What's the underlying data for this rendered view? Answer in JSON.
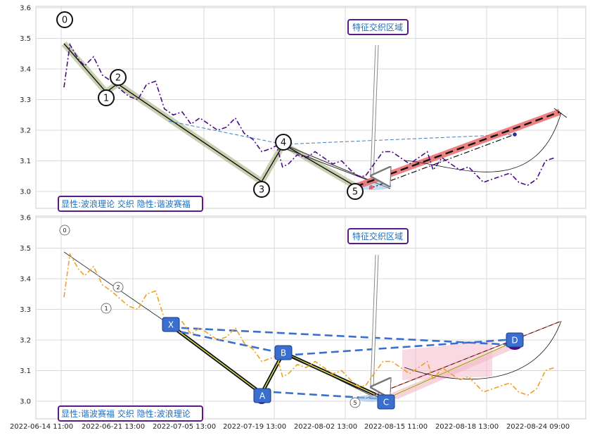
{
  "chart_data": [
    {
      "type": "line",
      "panel": "top",
      "ylim": [
        2.95,
        3.6
      ],
      "yticks": [
        3.0,
        3.1,
        3.2,
        3.3,
        3.4,
        3.5,
        3.6
      ],
      "legend_text": "显性:波浪理论 交织 隐性:谐波赛福",
      "annotation_text": "特征交织区域",
      "series": [
        {
          "values": [
            [
              0,
              3.34
            ],
            [
              0.4,
              3.48
            ],
            [
              1.0,
              3.43
            ],
            [
              1.4,
              3.41
            ],
            [
              2.0,
              3.44
            ],
            [
              2.6,
              3.38
            ],
            [
              3.2,
              3.36
            ],
            [
              3.9,
              3.33
            ],
            [
              4.4,
              3.31
            ],
            [
              5.0,
              3.3
            ],
            [
              5.6,
              3.35
            ],
            [
              6.2,
              3.36
            ],
            [
              6.8,
              3.27
            ],
            [
              7.4,
              3.25
            ],
            [
              8.0,
              3.26
            ],
            [
              8.6,
              3.22
            ],
            [
              9.2,
              3.24
            ],
            [
              9.8,
              3.22
            ],
            [
              10.4,
              3.2
            ],
            [
              11.0,
              3.21
            ],
            [
              11.6,
              3.24
            ],
            [
              12.2,
              3.19
            ],
            [
              12.8,
              3.17
            ],
            [
              13.4,
              3.13
            ],
            [
              14.0,
              3.14
            ],
            [
              14.4,
              3.15
            ],
            [
              14.8,
              3.08
            ],
            [
              15.2,
              3.09
            ],
            [
              15.8,
              3.12
            ],
            [
              16.4,
              3.11
            ],
            [
              17.0,
              3.13
            ],
            [
              17.6,
              3.11
            ],
            [
              18.2,
              3.09
            ],
            [
              18.8,
              3.1
            ],
            [
              19.4,
              3.07
            ],
            [
              19.9,
              3.05
            ],
            [
              20.4,
              3.05
            ],
            [
              21.0,
              3.09
            ],
            [
              21.6,
              3.13
            ],
            [
              22.2,
              3.13
            ],
            [
              22.8,
              3.11
            ],
            [
              23.4,
              3.09
            ],
            [
              24.0,
              3.11
            ],
            [
              24.6,
              3.13
            ],
            [
              25.0,
              3.07
            ],
            [
              25.6,
              3.11
            ],
            [
              26.2,
              3.09
            ],
            [
              26.8,
              3.07
            ],
            [
              27.4,
              3.08
            ],
            [
              28.0,
              3.05
            ],
            [
              28.4,
              3.03
            ],
            [
              29.0,
              3.04
            ],
            [
              29.6,
              3.05
            ],
            [
              30.2,
              3.06
            ],
            [
              30.8,
              3.03
            ],
            [
              31.4,
              3.02
            ],
            [
              32.0,
              3.04
            ],
            [
              32.6,
              3.1
            ],
            [
              33.2,
              3.11
            ]
          ]
        }
      ],
      "wave_points": [
        {
          "label": "0",
          "x": 0.4,
          "y": 3.48
        },
        {
          "label": "1",
          "x": 5.0,
          "y": 3.3
        },
        {
          "label": "2",
          "x": 6.2,
          "y": 3.36
        },
        {
          "label": "3",
          "x": 19.9,
          "y": 3.05
        },
        {
          "label": "4",
          "x": 22.0,
          "y": 3.14
        },
        {
          "label": "5",
          "x": 29.5,
          "y": 3.02
        }
      ]
    },
    {
      "type": "line",
      "panel": "bottom",
      "ylim": [
        2.95,
        3.6
      ],
      "yticks": [
        3.0,
        3.1,
        3.2,
        3.3,
        3.4,
        3.5,
        3.6
      ],
      "legend_text": "显性:谐波赛福 交织 隐性:波浪理论",
      "annotation_text": "特征交织区域",
      "x_tick_labels": [
        "2022-06-14 11:00",
        "2022-06-21 13:00",
        "2022-07-05 13:00",
        "2022-07-19 13:00",
        "2022-08-02 13:00",
        "2022-08-15 11:00",
        "2022-08-18 13:00",
        "2022-08-24 09:00"
      ],
      "series": [
        {
          "values": [
            [
              0,
              3.34
            ],
            [
              0.4,
              3.48
            ],
            [
              1.0,
              3.43
            ],
            [
              1.4,
              3.41
            ],
            [
              2.0,
              3.44
            ],
            [
              2.6,
              3.38
            ],
            [
              3.2,
              3.36
            ],
            [
              3.9,
              3.33
            ],
            [
              4.4,
              3.31
            ],
            [
              5.0,
              3.3
            ],
            [
              5.6,
              3.35
            ],
            [
              6.2,
              3.36
            ],
            [
              6.8,
              3.27
            ],
            [
              7.4,
              3.25
            ],
            [
              8.0,
              3.26
            ],
            [
              8.6,
              3.22
            ],
            [
              9.2,
              3.24
            ],
            [
              9.8,
              3.22
            ],
            [
              10.4,
              3.2
            ],
            [
              11.0,
              3.21
            ],
            [
              11.6,
              3.24
            ],
            [
              12.2,
              3.19
            ],
            [
              12.8,
              3.17
            ],
            [
              13.4,
              3.13
            ],
            [
              14.0,
              3.14
            ],
            [
              14.4,
              3.15
            ],
            [
              14.8,
              3.08
            ],
            [
              15.2,
              3.09
            ],
            [
              15.8,
              3.12
            ],
            [
              16.4,
              3.11
            ],
            [
              17.0,
              3.13
            ],
            [
              17.6,
              3.11
            ],
            [
              18.2,
              3.09
            ],
            [
              18.8,
              3.1
            ],
            [
              19.4,
              3.07
            ],
            [
              19.9,
              3.05
            ],
            [
              20.4,
              3.05
            ],
            [
              21.0,
              3.09
            ],
            [
              21.6,
              3.13
            ],
            [
              22.2,
              3.13
            ],
            [
              22.8,
              3.11
            ],
            [
              23.4,
              3.09
            ],
            [
              24.0,
              3.11
            ],
            [
              24.6,
              3.13
            ],
            [
              25.0,
              3.07
            ],
            [
              25.6,
              3.11
            ],
            [
              26.2,
              3.09
            ],
            [
              26.8,
              3.07
            ],
            [
              27.4,
              3.08
            ],
            [
              28.0,
              3.05
            ],
            [
              28.4,
              3.03
            ],
            [
              29.0,
              3.04
            ],
            [
              29.6,
              3.05
            ],
            [
              30.2,
              3.06
            ],
            [
              30.8,
              3.03
            ],
            [
              31.4,
              3.02
            ],
            [
              32.0,
              3.04
            ],
            [
              32.6,
              3.1
            ],
            [
              33.2,
              3.11
            ]
          ]
        }
      ],
      "wave_points": [
        {
          "label": "0",
          "x": 0.4,
          "y": 3.56
        },
        {
          "label": "1",
          "x": 3.4,
          "y": 3.32
        },
        {
          "label": "2",
          "x": 4.0,
          "y": 3.36
        },
        {
          "label": "5",
          "x": 20.4,
          "y": 2.99
        }
      ],
      "harmonic_points": [
        {
          "label": "X",
          "x": 7.5,
          "y": 3.245
        },
        {
          "label": "A",
          "x": 13.7,
          "y": 3.015
        },
        {
          "label": "B",
          "x": 15.2,
          "y": 3.14
        },
        {
          "label": "C",
          "x": 22.0,
          "y": 2.995
        },
        {
          "label": "D",
          "x": 32.5,
          "y": 3.19
        }
      ]
    }
  ],
  "colors": {
    "top_price": "#4b0a8a",
    "bottom_price": "#f0a020",
    "wave_band": "#9aaa70",
    "projection": "#e86060",
    "harmonic_dashed": "#3a6fd0",
    "harmonic_label": "#3a6fd0",
    "legend_border": "#5a1a8a",
    "legend_text": "#1f6fbf"
  }
}
